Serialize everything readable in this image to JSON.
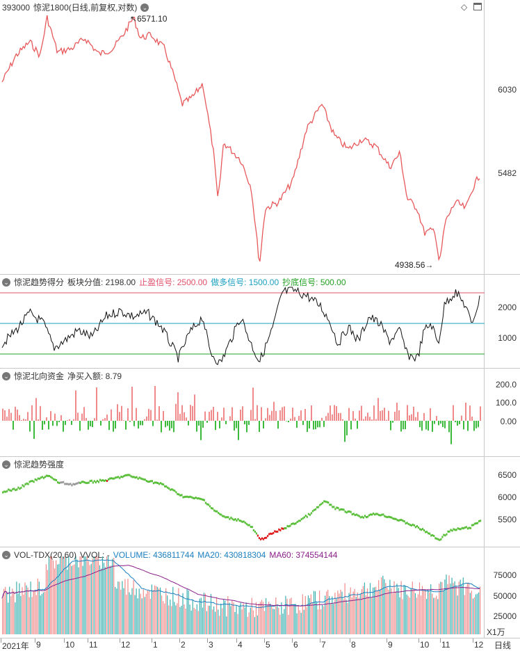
{
  "price": {
    "code": "393000",
    "name": "惊泥1800",
    "mode": "(日线,前复权,对数)",
    "high_label": "6571.10",
    "low_label": "4938.56",
    "ticks": [
      "6030",
      "5482"
    ]
  },
  "trend_score": {
    "title": "惊泥趋势得分",
    "sector_label": "板块分值: 2198.00",
    "profit_label": "止盈信号: 2500.00",
    "long_label": "做多信号: 1500.00",
    "bottom_label": "抄底信号: 500.00",
    "ticks": [
      "2000",
      "1000"
    ],
    "colors": {
      "profit": "#e0506a",
      "long": "#1aa0c0",
      "bottom": "#20a020"
    }
  },
  "northbound": {
    "title": "惊泥北向资金",
    "value_label": "净买入额: 8.79",
    "ticks": [
      "200.0",
      "100.0",
      "0.00"
    ]
  },
  "strength": {
    "title": "惊泥趋势强度",
    "ticks": [
      "6500",
      "6000",
      "5500"
    ]
  },
  "volume": {
    "title": "VOL-TDX(20,60)",
    "vvol_label": "VVOL: -",
    "volume_label": "VOLUME: 436811744",
    "ma20_label": "MA20: 430818304",
    "ma60_label": "MA60: 374554144",
    "ticks": [
      "75000",
      "50000",
      "25000"
    ],
    "unit": "X1万",
    "colors": {
      "volume": "#1a7fc0",
      "ma20": "#1a7fc0",
      "ma60": "#8a208a"
    }
  },
  "xaxis": {
    "labels": [
      "2021年",
      "9",
      "10",
      "11",
      "12",
      "1",
      "2",
      "3",
      "4",
      "5",
      "6",
      "7",
      "8",
      "9",
      "10",
      "11",
      "12"
    ],
    "period": "日线"
  },
  "icons": [
    "collapse-icon",
    "diamond-icon",
    "window-icon"
  ]
}
